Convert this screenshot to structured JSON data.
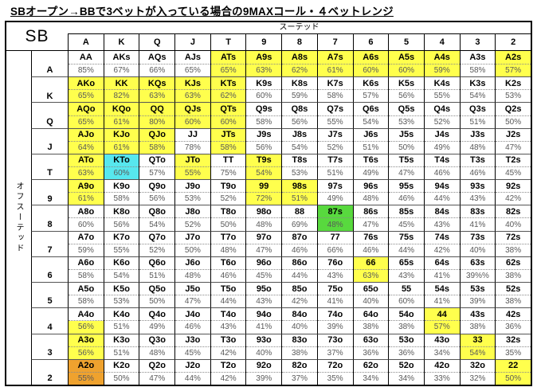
{
  "title": "SBオープン→BBで3ベットが入っている場合の9MAXコール・４ベットレンジ",
  "corner_label": "SB",
  "suited_label": "スーテッド",
  "offsuit_label": "オフスーテッド",
  "colors": {
    "w": "#FFFFFF",
    "y": "#FFFF4D",
    "c": "#57E7EE",
    "g": "#58D93E",
    "o": "#EFA22E"
  },
  "chart_data": {
    "type": "table",
    "col_headers": [
      "A",
      "K",
      "Q",
      "J",
      "T",
      "9",
      "8",
      "7",
      "6",
      "5",
      "4",
      "3",
      "2"
    ],
    "row_headers": [
      "A",
      "K",
      "Q",
      "J",
      "T",
      "9",
      "8",
      "7",
      "6",
      "5",
      "4",
      "3",
      "2"
    ],
    "rows": [
      {
        "label": "A",
        "cells": [
          [
            "AA",
            "85%",
            "w"
          ],
          [
            "AKs",
            "67%",
            "w"
          ],
          [
            "AQs",
            "66%",
            "w"
          ],
          [
            "AJs",
            "65%",
            "w"
          ],
          [
            "ATs",
            "65%",
            "y"
          ],
          [
            "A9s",
            "63%",
            "y"
          ],
          [
            "A8s",
            "62%",
            "y"
          ],
          [
            "A7s",
            "61%",
            "y"
          ],
          [
            "A6s",
            "60%",
            "y"
          ],
          [
            "A5s",
            "60%",
            "y"
          ],
          [
            "A4s",
            "59%",
            "y"
          ],
          [
            "A3s",
            "58%",
            "w"
          ],
          [
            "A2s",
            "57%",
            "y"
          ]
        ]
      },
      {
        "label": "K",
        "cells": [
          [
            "AKo",
            "65%",
            "y"
          ],
          [
            "KK",
            "82%",
            "y"
          ],
          [
            "KQs",
            "63%",
            "y"
          ],
          [
            "KJs",
            "63%",
            "y"
          ],
          [
            "KTs",
            "62%",
            "y"
          ],
          [
            "K9s",
            "60%",
            "w"
          ],
          [
            "K8s",
            "59%",
            "w"
          ],
          [
            "K7s",
            "58%",
            "w"
          ],
          [
            "K6s",
            "57%",
            "w"
          ],
          [
            "K5s",
            "56%",
            "w"
          ],
          [
            "K4s",
            "55%",
            "w"
          ],
          [
            "K3s",
            "54%",
            "w"
          ],
          [
            "K2s",
            "53%",
            "w"
          ]
        ]
      },
      {
        "label": "Q",
        "cells": [
          [
            "AQo",
            "65%",
            "y"
          ],
          [
            "KQo",
            "61%",
            "y"
          ],
          [
            "QQ",
            "80%",
            "y"
          ],
          [
            "QJs",
            "60%",
            "y"
          ],
          [
            "QTs",
            "60%",
            "y"
          ],
          [
            "Q9s",
            "58%",
            "w"
          ],
          [
            "Q8s",
            "56%",
            "w"
          ],
          [
            "Q7s",
            "55%",
            "w"
          ],
          [
            "Q6s",
            "54%",
            "w"
          ],
          [
            "Q5s",
            "53%",
            "w"
          ],
          [
            "Q4s",
            "52%",
            "w"
          ],
          [
            "Q3s",
            "51%",
            "w"
          ],
          [
            "Q2s",
            "50%",
            "w"
          ]
        ]
      },
      {
        "label": "J",
        "cells": [
          [
            "AJo",
            "64%",
            "y"
          ],
          [
            "KJo",
            "61%",
            "y"
          ],
          [
            "QJo",
            "58%",
            "y"
          ],
          [
            "JJ",
            "78%",
            "w"
          ],
          [
            "JTs",
            "58%",
            "y"
          ],
          [
            "J9s",
            "56%",
            "w"
          ],
          [
            "J8s",
            "54%",
            "w"
          ],
          [
            "J7s",
            "52%",
            "w"
          ],
          [
            "J6s",
            "51%",
            "w"
          ],
          [
            "J5s",
            "50%",
            "w"
          ],
          [
            "J4s",
            "49%",
            "w"
          ],
          [
            "J3s",
            "48%",
            "w"
          ],
          [
            "J2s",
            "47%",
            "w"
          ]
        ]
      },
      {
        "label": "T",
        "cells": [
          [
            "ATo",
            "63%",
            "y"
          ],
          [
            "KTo",
            "60%",
            "c"
          ],
          [
            "QTo",
            "57%",
            "w"
          ],
          [
            "JTo",
            "55%",
            "y"
          ],
          [
            "TT",
            "75%",
            "w"
          ],
          [
            "T9s",
            "54%",
            "y"
          ],
          [
            "T8s",
            "53%",
            "w"
          ],
          [
            "T7s",
            "51%",
            "w"
          ],
          [
            "T6s",
            "49%",
            "w"
          ],
          [
            "T5s",
            "47%",
            "w"
          ],
          [
            "T4s",
            "46%",
            "w"
          ],
          [
            "T3s",
            "46%",
            "w"
          ],
          [
            "T2s",
            "45%",
            "w"
          ]
        ]
      },
      {
        "label": "9",
        "cells": [
          [
            "A9o",
            "61%",
            "y"
          ],
          [
            "K9o",
            "58%",
            "w"
          ],
          [
            "Q9o",
            "56%",
            "w"
          ],
          [
            "J9o",
            "53%",
            "w"
          ],
          [
            "T9o",
            "52%",
            "w"
          ],
          [
            "99",
            "72%",
            "y"
          ],
          [
            "98s",
            "51%",
            "y"
          ],
          [
            "97s",
            "49%",
            "w"
          ],
          [
            "96s",
            "48%",
            "w"
          ],
          [
            "95s",
            "46%",
            "w"
          ],
          [
            "94s",
            "44%",
            "w"
          ],
          [
            "93s",
            "43%",
            "w"
          ],
          [
            "92s",
            "42%",
            "w"
          ]
        ]
      },
      {
        "label": "8",
        "cells": [
          [
            "A8o",
            "60%",
            "w"
          ],
          [
            "K8o",
            "56%",
            "w"
          ],
          [
            "Q8o",
            "54%",
            "w"
          ],
          [
            "J8o",
            "52%",
            "w"
          ],
          [
            "T8o",
            "50%",
            "w"
          ],
          [
            "98o",
            "48%",
            "w"
          ],
          [
            "88",
            "69%",
            "w"
          ],
          [
            "87s",
            "48%",
            "g"
          ],
          [
            "86s",
            "47%",
            "w"
          ],
          [
            "85s",
            "45%",
            "w"
          ],
          [
            "84s",
            "43%",
            "w"
          ],
          [
            "83s",
            "41%",
            "w"
          ],
          [
            "82s",
            "40%",
            "w"
          ]
        ]
      },
      {
        "label": "7",
        "cells": [
          [
            "A7o",
            "59%",
            "w"
          ],
          [
            "K7o",
            "55%",
            "w"
          ],
          [
            "Q7o",
            "52%",
            "w"
          ],
          [
            "J7o",
            "50%",
            "w"
          ],
          [
            "T7o",
            "48%",
            "w"
          ],
          [
            "97o",
            "47%",
            "w"
          ],
          [
            "87o",
            "46%",
            "w"
          ],
          [
            "77",
            "66%",
            "w"
          ],
          [
            "76s",
            "46%",
            "w"
          ],
          [
            "75s",
            "44%",
            "w"
          ],
          [
            "74s",
            "42%",
            "w"
          ],
          [
            "73s",
            "40%",
            "w"
          ],
          [
            "72s",
            "38%",
            "w"
          ]
        ]
      },
      {
        "label": "6",
        "cells": [
          [
            "A6o",
            "58%",
            "w"
          ],
          [
            "K6o",
            "54%",
            "w"
          ],
          [
            "Q6o",
            "51%",
            "w"
          ],
          [
            "J6o",
            "48%",
            "w"
          ],
          [
            "T6o",
            "46%",
            "w"
          ],
          [
            "96o",
            "45%",
            "w"
          ],
          [
            "86o",
            "44%",
            "w"
          ],
          [
            "76o",
            "43%",
            "w"
          ],
          [
            "66",
            "63%",
            "y"
          ],
          [
            "65s",
            "43%",
            "w"
          ],
          [
            "64s",
            "41%",
            "w"
          ],
          [
            "63s",
            "39%%",
            "w"
          ],
          [
            "62s",
            "38%",
            "w"
          ]
        ]
      },
      {
        "label": "5",
        "cells": [
          [
            "A5o",
            "58%",
            "w"
          ],
          [
            "K5o",
            "53%",
            "w"
          ],
          [
            "Q5o",
            "50%",
            "w"
          ],
          [
            "J5o",
            "47%",
            "w"
          ],
          [
            "T5o",
            "44%",
            "w"
          ],
          [
            "95o",
            "43%",
            "w"
          ],
          [
            "85o",
            "42%",
            "w"
          ],
          [
            "75o",
            "41%",
            "w"
          ],
          [
            "65o",
            "40%",
            "w"
          ],
          [
            "55",
            "60%",
            "w"
          ],
          [
            "54s",
            "41%",
            "w"
          ],
          [
            "53s",
            "39%",
            "w"
          ],
          [
            "52s",
            "38%",
            "w"
          ]
        ]
      },
      {
        "label": "4",
        "cells": [
          [
            "A4o",
            "56%",
            "w",
            "y"
          ],
          [
            "K4o",
            "51%",
            "w"
          ],
          [
            "Q4o",
            "49%",
            "w"
          ],
          [
            "J4o",
            "46%",
            "w"
          ],
          [
            "T4o",
            "43%",
            "w"
          ],
          [
            "94o",
            "41%",
            "w"
          ],
          [
            "84o",
            "40%",
            "w"
          ],
          [
            "74o",
            "39%",
            "w"
          ],
          [
            "64o",
            "38%",
            "w"
          ],
          [
            "54o",
            "38%",
            "w"
          ],
          [
            "44",
            "57%",
            "y"
          ],
          [
            "43s",
            "38%",
            "w"
          ],
          [
            "42s",
            "36%",
            "w"
          ]
        ]
      },
      {
        "label": "3",
        "cells": [
          [
            "A3o",
            "56%",
            "y"
          ],
          [
            "K3o",
            "51%",
            "w"
          ],
          [
            "Q3o",
            "48%",
            "w"
          ],
          [
            "J3o",
            "45%",
            "w"
          ],
          [
            "T3o",
            "42%",
            "w"
          ],
          [
            "93o",
            "40%",
            "w"
          ],
          [
            "83o",
            "38%",
            "w"
          ],
          [
            "73o",
            "37%",
            "w"
          ],
          [
            "63o",
            "36%",
            "w"
          ],
          [
            "53o",
            "36%",
            "w"
          ],
          [
            "43o",
            "34%",
            "w"
          ],
          [
            "33",
            "54%",
            "y"
          ],
          [
            "32s",
            "35%",
            "w"
          ]
        ]
      },
      {
        "label": "2",
        "cells": [
          [
            "A2o",
            "55%",
            "o"
          ],
          [
            "K2o",
            "50%",
            "w"
          ],
          [
            "Q2o",
            "47%",
            "w"
          ],
          [
            "J2o",
            "44%",
            "w"
          ],
          [
            "T2o",
            "42%",
            "w"
          ],
          [
            "92o",
            "39%",
            "w"
          ],
          [
            "82o",
            "37%",
            "w"
          ],
          [
            "72o",
            "35%",
            "w"
          ],
          [
            "62o",
            "34%",
            "w"
          ],
          [
            "52o",
            "34%",
            "w"
          ],
          [
            "42o",
            "33%",
            "w"
          ],
          [
            "32o",
            "32%",
            "w"
          ],
          [
            "22",
            "50%",
            "y"
          ]
        ]
      }
    ]
  }
}
